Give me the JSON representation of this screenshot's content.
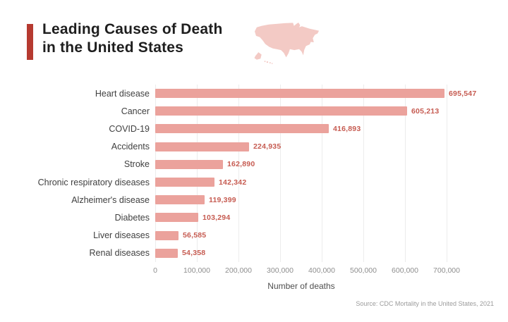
{
  "header": {
    "title_line1": "Leading Causes of Death",
    "title_line2": "in the United States"
  },
  "chart_data": {
    "type": "bar",
    "orientation": "horizontal",
    "title": "Leading Causes of Death in the United States",
    "categories": [
      "Heart disease",
      "Cancer",
      "COVID-19",
      "Accidents",
      "Stroke",
      "Chronic respiratory diseases",
      "Alzheimer's disease",
      "Diabetes",
      "Liver diseases",
      "Renal diseases"
    ],
    "values": [
      695547,
      605213,
      416893,
      224935,
      162890,
      142342,
      119399,
      103294,
      56585,
      54358
    ],
    "value_labels": [
      "695,547",
      "605,213",
      "416,893",
      "224,935",
      "162,890",
      "142,342",
      "119,399",
      "103,294",
      "56,585",
      "54,358"
    ],
    "xlabel": "Number of deaths",
    "ylabel": "",
    "x_ticks": [
      "0",
      "100,000",
      "200,000",
      "300,000",
      "400,000",
      "500,000",
      "600,000",
      "700,000"
    ],
    "x_tick_values": [
      0,
      100000,
      200000,
      300000,
      400000,
      500000,
      600000,
      700000
    ],
    "xlim": [
      0,
      710000
    ],
    "axis_max": 700000,
    "grid": true,
    "legend": false
  },
  "footer": {
    "source": "Source: CDC Mortality in the United States, 2021"
  },
  "theme": {
    "background": "#ffffff",
    "accent_red": "#b63a30",
    "bar_fill": "#eba29c",
    "value_text": "#c65b51",
    "title_text": "#1e1e1e",
    "category_text": "#3f3f3f",
    "tick_text": "#8e8e8e",
    "axis_title_text": "#4f4f4f",
    "gridline": "#ececec",
    "source_text": "#9b9b9b",
    "map_fill": "#f3cac5"
  }
}
